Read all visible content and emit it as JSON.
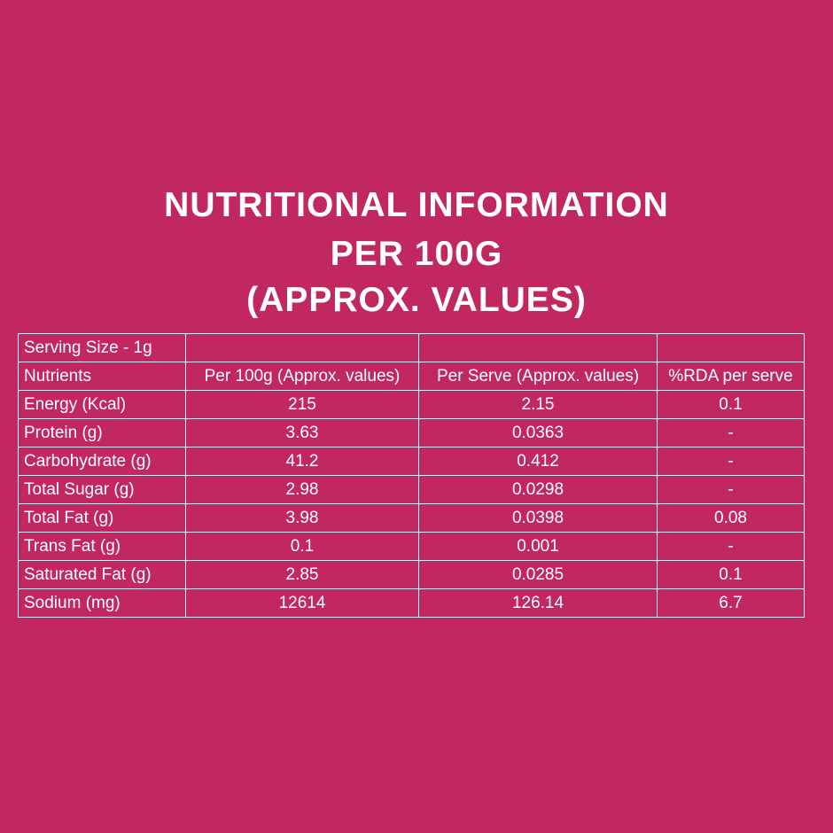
{
  "title": {
    "line1": "NUTRITIONAL INFORMATION",
    "line2": "PER 100G",
    "line3": "(APPROX. VALUES)"
  },
  "table": {
    "serving_size": "Serving Size - 1g",
    "header": [
      "Nutrients",
      "Per 100g (Approx. values)",
      "Per Serve (Approx. values)",
      "%RDA per serve"
    ],
    "rows": [
      [
        "Energy (Kcal)",
        "215",
        "2.15",
        "0.1"
      ],
      [
        "Protein (g)",
        "3.63",
        "0.0363",
        "-"
      ],
      [
        "Carbohydrate (g)",
        "41.2",
        "0.412",
        "-"
      ],
      [
        "Total Sugar (g)",
        "2.98",
        "0.0298",
        "-"
      ],
      [
        "Total Fat (g)",
        "3.98",
        "0.0398",
        "0.08"
      ],
      [
        "Trans Fat (g)",
        "0.1",
        "0.001",
        "-"
      ],
      [
        "Saturated Fat (g)",
        "2.85",
        "0.0285",
        "0.1"
      ],
      [
        "Sodium (mg)",
        "12614",
        "126.14",
        "6.7"
      ]
    ]
  }
}
